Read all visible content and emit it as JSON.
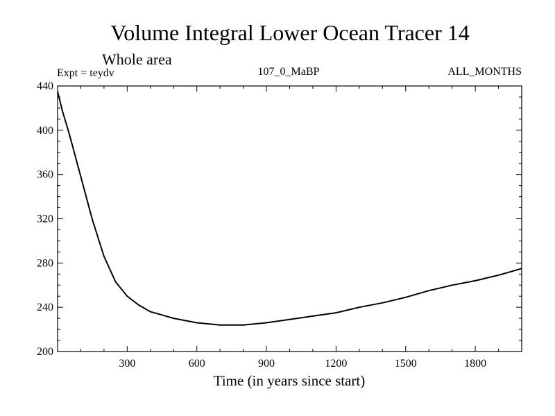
{
  "chart_data": {
    "type": "line",
    "title": "Volume Integral Lower Ocean Tracer 14",
    "subtitle": "Whole area",
    "experiment_label": "Expt = teydv",
    "run_label": "107_0_MaBP",
    "period_label": "ALL_MONTHS",
    "xlabel": "Time (in years since start)",
    "ylabel": "",
    "xlim": [
      0,
      2000
    ],
    "ylim": [
      200,
      440
    ],
    "x_ticks": [
      300,
      600,
      900,
      1200,
      1500,
      1800
    ],
    "y_ticks": [
      200,
      240,
      280,
      320,
      360,
      400,
      440
    ],
    "grid": false,
    "series": [
      {
        "name": "Volume integral",
        "x": [
          0,
          20,
          50,
          100,
          150,
          200,
          250,
          300,
          350,
          400,
          450,
          500,
          600,
          700,
          800,
          900,
          1000,
          1100,
          1200,
          1300,
          1400,
          1500,
          1600,
          1700,
          1800,
          1900,
          2000
        ],
        "y": [
          435,
          418,
          397,
          358,
          319,
          286,
          263,
          250,
          242,
          236,
          233,
          230,
          226,
          224,
          224,
          226,
          229,
          232,
          235,
          240,
          244,
          249,
          255,
          260,
          264,
          269,
          275
        ]
      }
    ]
  }
}
